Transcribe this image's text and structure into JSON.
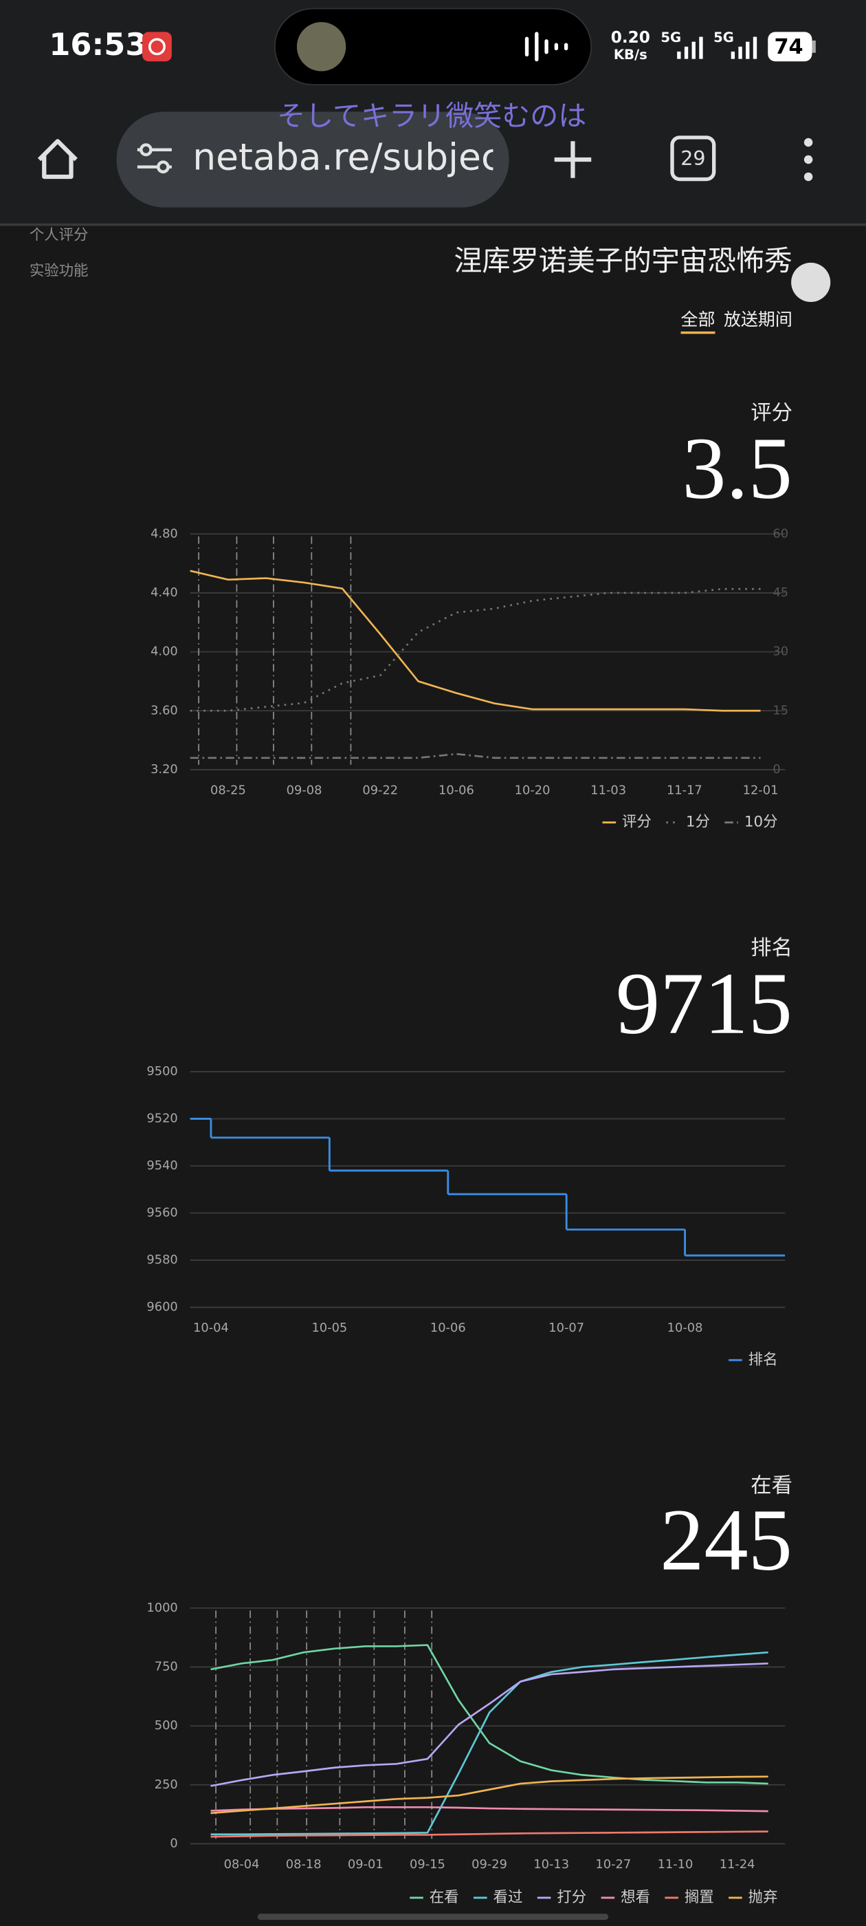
{
  "status_bar": {
    "time": "16:53",
    "net_speed": "0.20",
    "net_unit": "KB/s",
    "signal_1": "5G",
    "signal_2": "5G",
    "battery": 74
  },
  "browser": {
    "url": "netaba.re/subject",
    "tab_count": 29,
    "lyric": "そしてキラリ微笑むのは"
  },
  "sidebar": [
    "个人评分",
    "实验功能"
  ],
  "title": "涅库罗诺美子的宇宙恐怖秀",
  "tabs": [
    "全部",
    "放送期间"
  ],
  "chart_data": [
    {
      "type": "line",
      "label": "评分",
      "current": 3.5,
      "categories": [
        null,
        "08-25",
        null,
        "09-08",
        null,
        "09-22",
        null,
        "10-06",
        null,
        "10-20",
        null,
        "11-03",
        null,
        "11-17",
        null,
        "12-01"
      ],
      "ylim": [
        3.2,
        4.8
      ],
      "yticks": [
        {
          "value": 3.2,
          "label": "3.20"
        },
        {
          "value": 3.6,
          "label": "3.60"
        },
        {
          "value": 4.0,
          "label": "4.00"
        },
        {
          "value": 4.4,
          "label": "4.40"
        },
        {
          "value": 4.8,
          "label": "4.80"
        }
      ],
      "y2lim": [
        0,
        60
      ],
      "y2ticks": [
        0,
        15,
        30,
        45,
        60
      ],
      "grid": true,
      "legend": "bottom-right",
      "series": [
        {
          "name": "评分",
          "color": "#f0b452",
          "values": [
            4.55,
            4.49,
            4.5,
            4.47,
            4.43,
            4.12,
            3.8,
            3.72,
            3.65,
            3.61,
            3.61,
            3.61,
            3.61,
            3.61,
            3.6,
            3.6
          ]
        },
        {
          "name": "1分",
          "color": "#777777",
          "style": "dotted",
          "axis": "y2",
          "values": [
            15,
            15,
            16,
            17,
            22,
            24,
            35,
            40,
            41,
            43,
            44,
            45,
            45,
            45,
            46,
            46
          ]
        },
        {
          "name": "10分",
          "color": "#777777",
          "style": "dashdot",
          "axis": "y2",
          "values": [
            3,
            3,
            3,
            3,
            3,
            3,
            3,
            4,
            3,
            3,
            3,
            3,
            3,
            3,
            3,
            3
          ]
        }
      ]
    },
    {
      "type": "step",
      "label": "排名",
      "current": 9715,
      "categories": [
        null,
        "10-04",
        "10-05",
        "10-06",
        "10-07",
        "10-08"
      ],
      "ylim": [
        9500,
        9600
      ],
      "y_inverted": true,
      "yticks": [
        9500,
        9520,
        9540,
        9560,
        9580,
        9600
      ],
      "grid": true,
      "legend": "bottom-right",
      "series": [
        {
          "name": "排名",
          "color": "#3a8ee6",
          "values": [
            9520,
            9528,
            9542,
            9552,
            9567,
            9578
          ]
        }
      ]
    },
    {
      "type": "line",
      "label": "在看",
      "current": 245,
      "categories": [
        null,
        "08-04",
        null,
        "08-18",
        null,
        "09-01",
        null,
        "09-15",
        null,
        "09-29",
        null,
        "10-13",
        null,
        "10-27",
        null,
        "11-10",
        null,
        "11-24",
        null
      ],
      "ylim": [
        0,
        1000
      ],
      "yticks": [
        0,
        250,
        500,
        750,
        1000
      ],
      "grid": true,
      "legend": "bottom-right",
      "series": [
        {
          "name": "在看",
          "color": "#6fd6a4",
          "values": [
            740,
            765,
            780,
            812,
            828,
            838,
            838,
            843,
            610,
            427,
            350,
            312,
            292,
            281,
            271,
            266,
            260,
            260,
            255
          ]
        },
        {
          "name": "看过",
          "color": "#5cc9d6",
          "values": [
            40,
            40,
            41,
            42,
            43,
            44,
            45,
            47,
            297,
            557,
            688,
            729,
            750,
            760,
            771,
            781,
            792,
            802,
            812
          ]
        },
        {
          "name": "打分",
          "color": "#b9a6f5",
          "values": [
            245,
            270,
            292,
            307,
            323,
            333,
            339,
            360,
            505,
            594,
            688,
            719,
            729,
            740,
            745,
            750,
            755,
            760,
            765
          ]
        },
        {
          "name": "想看",
          "color": "#f08cb0",
          "values": [
            140,
            145,
            148,
            150,
            152,
            155,
            155,
            155,
            153,
            150,
            148,
            147,
            146,
            145,
            144,
            143,
            142,
            140,
            138
          ]
        },
        {
          "name": "搁置",
          "color": "#f0786e",
          "values": [
            30,
            32,
            34,
            35,
            36,
            37,
            38,
            38,
            40,
            42,
            44,
            45,
            46,
            47,
            48,
            49,
            50,
            51,
            52
          ]
        },
        {
          "name": "抛弃",
          "color": "#f0b452",
          "values": [
            130,
            140,
            150,
            160,
            170,
            180,
            190,
            195,
            205,
            230,
            255,
            265,
            270,
            275,
            278,
            280,
            282,
            284,
            285
          ]
        }
      ]
    }
  ]
}
